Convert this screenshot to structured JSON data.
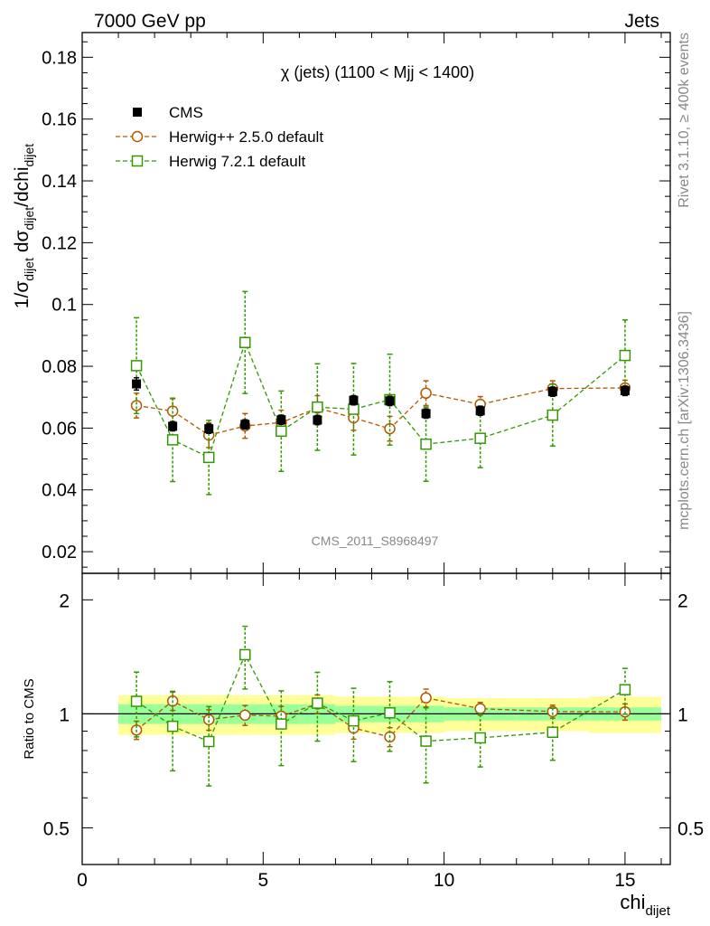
{
  "header": {
    "left": "7000 GeV pp",
    "right": "Jets"
  },
  "side": {
    "rivet": "Rivet 3.1.10, ≥ 400k events",
    "mcplots": "mcplots.cern.ch [arXiv:1306.3436]"
  },
  "chart_data": [
    {
      "type": "scatter",
      "title": "χ (jets) (1100 < Mjj < 1400)",
      "watermark": "CMS_2011_S8968497",
      "ylabel": "1/σdijet dσdijet/dchidijet",
      "xlim": [
        0,
        16.25
      ],
      "ylim": [
        0.013,
        0.188
      ],
      "yticks": [
        "0.02",
        "0.04",
        "0.06",
        "0.08",
        "0.1",
        "0.12",
        "0.14",
        "0.16",
        "0.18"
      ],
      "series": [
        {
          "name": "CMS",
          "x": [
            1.5,
            2.5,
            3.5,
            4.5,
            5.5,
            6.5,
            7.5,
            8.5,
            9.5,
            11,
            13,
            15
          ],
          "values": [
            0.0743,
            0.0606,
            0.0598,
            0.0612,
            0.0627,
            0.0626,
            0.069,
            0.0688,
            0.0647,
            0.0656,
            0.0718,
            0.0721
          ],
          "errors": [
            0.002,
            0.0015,
            0.0015,
            0.0015,
            0.0015,
            0.0015,
            0.0015,
            0.0015,
            0.0015,
            0.0015,
            0.0015,
            0.0015
          ],
          "color": "#000000",
          "marker": "filled-square"
        },
        {
          "name": "Herwig++ 2.5.0 default",
          "x": [
            1.5,
            2.5,
            3.5,
            4.5,
            5.5,
            6.5,
            7.5,
            8.5,
            9.5,
            11,
            13,
            15
          ],
          "values": [
            0.0673,
            0.0655,
            0.0577,
            0.0607,
            0.0618,
            0.0665,
            0.0633,
            0.0598,
            0.0713,
            0.0677,
            0.0728,
            0.073
          ],
          "errors": [
            0.004,
            0.004,
            0.004,
            0.004,
            0.004,
            0.004,
            0.004,
            0.004,
            0.004,
            0.0025,
            0.0025,
            0.0025
          ],
          "color": "#b35900",
          "marker": "open-circle"
        },
        {
          "name": "Herwig 7.2.1 default",
          "x": [
            1.5,
            2.5,
            3.5,
            4.5,
            5.5,
            6.5,
            7.5,
            8.5,
            9.5,
            11,
            13,
            15
          ],
          "values": [
            0.0802,
            0.0562,
            0.0505,
            0.0877,
            0.059,
            0.0668,
            0.0661,
            0.0692,
            0.0548,
            0.0567,
            0.0642,
            0.0835
          ],
          "errors": [
            0.0155,
            0.0135,
            0.012,
            0.0165,
            0.013,
            0.014,
            0.0148,
            0.0147,
            0.012,
            0.0095,
            0.01,
            0.0115
          ],
          "color": "#339900",
          "marker": "open-square"
        }
      ]
    },
    {
      "type": "scatter",
      "ylabel": "Ratio to CMS",
      "xlabel": "chidijet",
      "xlim": [
        0,
        16.25
      ],
      "ylim": [
        0.4,
        2.35
      ],
      "log_y": true,
      "yticks": [
        "0.5",
        "1",
        "2"
      ],
      "xticks": [
        "0",
        "5",
        "10",
        "15"
      ],
      "band_bins": [
        1,
        2,
        3,
        4,
        5,
        6,
        7,
        8,
        9,
        10,
        12,
        14,
        16
      ],
      "band_inner": [
        0.06,
        0.06,
        0.06,
        0.06,
        0.06,
        0.06,
        0.05,
        0.05,
        0.05,
        0.04,
        0.04,
        0.04
      ],
      "band_outer": [
        0.12,
        0.12,
        0.12,
        0.12,
        0.12,
        0.12,
        0.11,
        0.11,
        0.11,
        0.1,
        0.1,
        0.11
      ],
      "series": [
        {
          "name": "Herwig++ 2.5.0 default",
          "x": [
            1.5,
            2.5,
            3.5,
            4.5,
            5.5,
            6.5,
            7.5,
            8.5,
            9.5,
            11,
            13,
            15
          ],
          "values": [
            0.906,
            1.081,
            0.965,
            0.992,
            0.986,
            1.062,
            0.917,
            0.869,
            1.102,
            1.032,
            1.014,
            1.012
          ],
          "errors": [
            0.05,
            0.06,
            0.06,
            0.06,
            0.06,
            0.06,
            0.06,
            0.05,
            0.06,
            0.04,
            0.04,
            0.05
          ],
          "color": "#b35900",
          "marker": "open-circle"
        },
        {
          "name": "Herwig 7.2.1 default",
          "x": [
            1.5,
            2.5,
            3.5,
            4.5,
            5.5,
            6.5,
            7.5,
            8.5,
            9.5,
            11,
            13,
            15
          ],
          "values": [
            1.079,
            0.927,
            0.845,
            1.433,
            0.94,
            1.067,
            0.958,
            1.006,
            0.847,
            0.864,
            0.894,
            1.158
          ],
          "errors": [
            0.21,
            0.22,
            0.2,
            0.27,
            0.21,
            0.22,
            0.21,
            0.21,
            0.19,
            0.14,
            0.14,
            0.16
          ],
          "color": "#339900",
          "marker": "open-square"
        }
      ]
    }
  ]
}
